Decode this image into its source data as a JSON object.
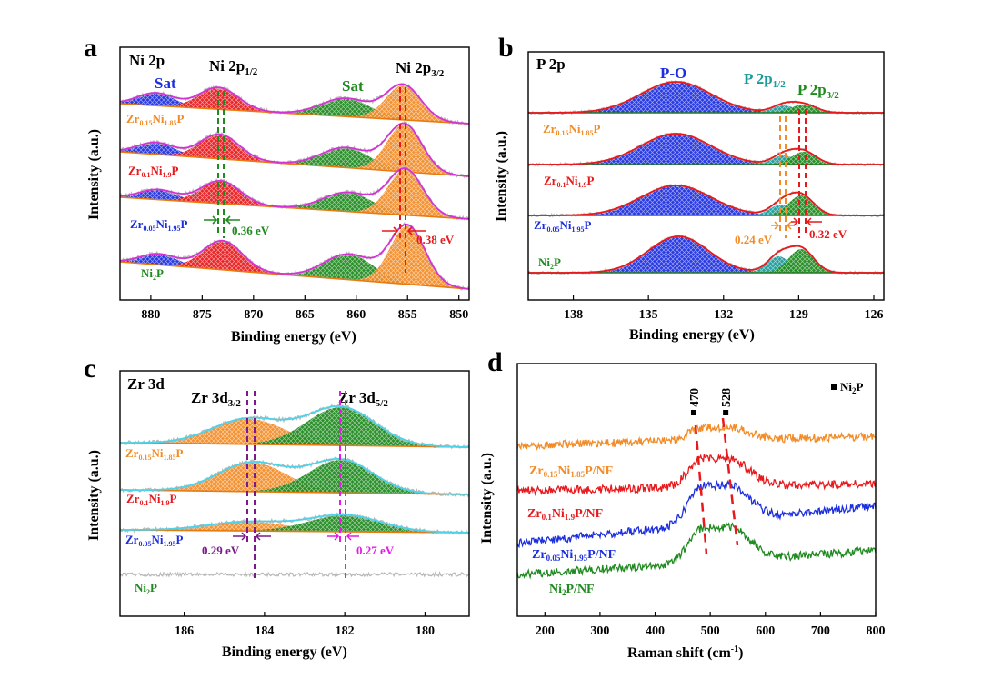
{
  "colors": {
    "orange": "#f28c28",
    "red": "#e8191c",
    "blue": "#1c2fe0",
    "green": "#1f8a1f",
    "teal": "#1a9a9a",
    "purple": "#7a1a8a",
    "magenta": "#e619e6",
    "grey": "#b9b9b9",
    "envelope_a": "#d433d4",
    "envelope_c": "#4fd2e8",
    "envelope_b": "#e8191c",
    "baseline_a": "#e87a10",
    "baseline_b": "#1f7a1f"
  },
  "chart_data": [
    {
      "panel": "a",
      "type": "line",
      "title": "Ni 2p",
      "xlabel": "Binding energy (eV)",
      "ylabel": "Intensity (a.u.)",
      "xlim": [
        883,
        849
      ],
      "xticks": [
        880,
        875,
        870,
        865,
        860,
        855,
        850
      ],
      "xtick_labels": [
        "880",
        "875",
        "870",
        "865",
        "860",
        "855",
        "850"
      ],
      "samples": [
        {
          "name_parts": [
            "Zr",
            "0.15",
            "Ni",
            "1.85",
            "P"
          ],
          "color": "#f28c28"
        },
        {
          "name_parts": [
            "Zr",
            "0.1",
            "Ni",
            "1.9",
            "P"
          ],
          "color": "#e8191c"
        },
        {
          "name_parts": [
            "Zr",
            "0.05",
            "Ni",
            "1.95",
            "P"
          ],
          "color": "#1c2fe0"
        },
        {
          "name_parts": [
            "Ni",
            "2",
            "P"
          ],
          "color": "#1f8a1f"
        }
      ],
      "peaks": [
        {
          "label": "Sat",
          "center": 879.5,
          "fill": "#1c2fe0"
        },
        {
          "label": "Ni 2p1/2",
          "center": 873.3,
          "fill": "#e8191c"
        },
        {
          "label": "Sat",
          "center": 861.0,
          "fill": "#1f8a1f"
        },
        {
          "label": "Ni 2p3/2",
          "center": 855.4,
          "fill": "#f28c28"
        }
      ],
      "peak_labels": {
        "sat_left": "Sat",
        "p12_main": "Ni 2p",
        "p12_sub": "1/2",
        "sat_right": "Sat",
        "p32_main": "Ni 2p",
        "p32_sub": "3/2"
      },
      "shifts": [
        {
          "label": "0.36 eV",
          "color": "#1f8a1f"
        },
        {
          "label": "0.38 eV",
          "color": "#e8191c"
        }
      ]
    },
    {
      "panel": "b",
      "type": "line",
      "title": "P 2p",
      "xlabel": "Binding energy (eV)",
      "ylabel": "Intensity (a.u.)",
      "xlim": [
        139.8,
        125.6
      ],
      "xticks": [
        138,
        135,
        132,
        129,
        126
      ],
      "xtick_labels": [
        "138",
        "135",
        "132",
        "129",
        "126"
      ],
      "samples": [
        {
          "name_parts": [
            "Zr",
            "0.15",
            "Ni",
            "1.85",
            "P"
          ],
          "color": "#f28c28"
        },
        {
          "name_parts": [
            "Zr",
            "0.1",
            "Ni",
            "1.9",
            "P"
          ],
          "color": "#e8191c"
        },
        {
          "name_parts": [
            "Zr",
            "0.05",
            "Ni",
            "1.95",
            "P"
          ],
          "color": "#1c2fe0"
        },
        {
          "name_parts": [
            "Ni",
            "2",
            "P"
          ],
          "color": "#1f8a1f"
        }
      ],
      "peaks": [
        {
          "label": "P-O",
          "center": 133.9,
          "fill": "#1c2fe0"
        },
        {
          "label": "P 2p1/2",
          "center": 129.6,
          "fill": "#1a9a9a"
        },
        {
          "label": "P 2p3/2",
          "center": 128.8,
          "fill": "#1f8a1f"
        }
      ],
      "peak_labels": {
        "po": "P-O",
        "p12_main": "P 2p",
        "p12_sub": "1/2",
        "p32_main": "P 2p",
        "p32_sub": "3/2"
      },
      "shifts": [
        {
          "label": "0.24 eV",
          "color": "#f28c28"
        },
        {
          "label": "0.32 eV",
          "color": "#e8191c"
        }
      ]
    },
    {
      "panel": "c",
      "type": "line",
      "title": "Zr 3d",
      "xlabel": "Binding energy (eV)",
      "ylabel": "Intensity (a.u.)",
      "xlim": [
        187.6,
        178.9
      ],
      "xticks": [
        186,
        184,
        182,
        180
      ],
      "xtick_labels": [
        "186",
        "184",
        "182",
        "180"
      ],
      "samples": [
        {
          "name_parts": [
            "Zr",
            "0.15",
            "Ni",
            "1.85",
            "P"
          ],
          "color": "#f28c28"
        },
        {
          "name_parts": [
            "Zr",
            "0.1",
            "Ni",
            "1.9",
            "P"
          ],
          "color": "#e8191c"
        },
        {
          "name_parts": [
            "Zr",
            "0.05",
            "Ni",
            "1.95",
            "P"
          ],
          "color": "#1c2fe0"
        },
        {
          "name_parts": [
            "Ni",
            "2",
            "P"
          ],
          "color": "#1f8a1f"
        }
      ],
      "peaks": [
        {
          "label": "Zr 3d3/2",
          "center": 184.4,
          "fill": "#f28c28"
        },
        {
          "label": "Zr 3d5/2",
          "center": 182.1,
          "fill": "#1f8a1f"
        }
      ],
      "peak_labels": {
        "d32_main": "Zr 3d",
        "d32_sub": "3/2",
        "d52_main": "Zr 3d",
        "d52_sub": "5/2"
      },
      "shifts": [
        {
          "label": "0.29 eV",
          "color": "#7a1a8a"
        },
        {
          "label": "0.27 eV",
          "color": "#e619e6"
        }
      ]
    },
    {
      "panel": "d",
      "type": "line",
      "title": "",
      "xlabel_main": "Raman shift (cm",
      "xlabel_sup": "-1",
      "xlabel_end": ")",
      "ylabel": "Intensity (a.u.)",
      "xlim": [
        150,
        800
      ],
      "xticks": [
        200,
        300,
        400,
        500,
        600,
        700,
        800
      ],
      "xtick_labels": [
        "200",
        "300",
        "400",
        "500",
        "600",
        "700",
        "800"
      ],
      "legend": {
        "main": "Ni",
        "sub": "2",
        "end": "P",
        "position": "top-right"
      },
      "marked_peaks": [
        470,
        528
      ],
      "marked_peak_labels": [
        "470",
        "528"
      ],
      "series": [
        {
          "name_parts": [
            "Zr",
            "0.15",
            "Ni",
            "1.85",
            "P/NF"
          ],
          "color": "#f28c28"
        },
        {
          "name_parts": [
            "Zr",
            "0.1",
            "Ni",
            "1.9",
            "P/NF"
          ],
          "color": "#e8191c"
        },
        {
          "name_parts": [
            "Zr",
            "0.05",
            "Ni",
            "1.95",
            "P/NF"
          ],
          "color": "#1c2fe0"
        },
        {
          "name_parts": [
            "Ni",
            "2",
            "P/NF"
          ],
          "color": "#1f8a1f"
        }
      ]
    }
  ]
}
